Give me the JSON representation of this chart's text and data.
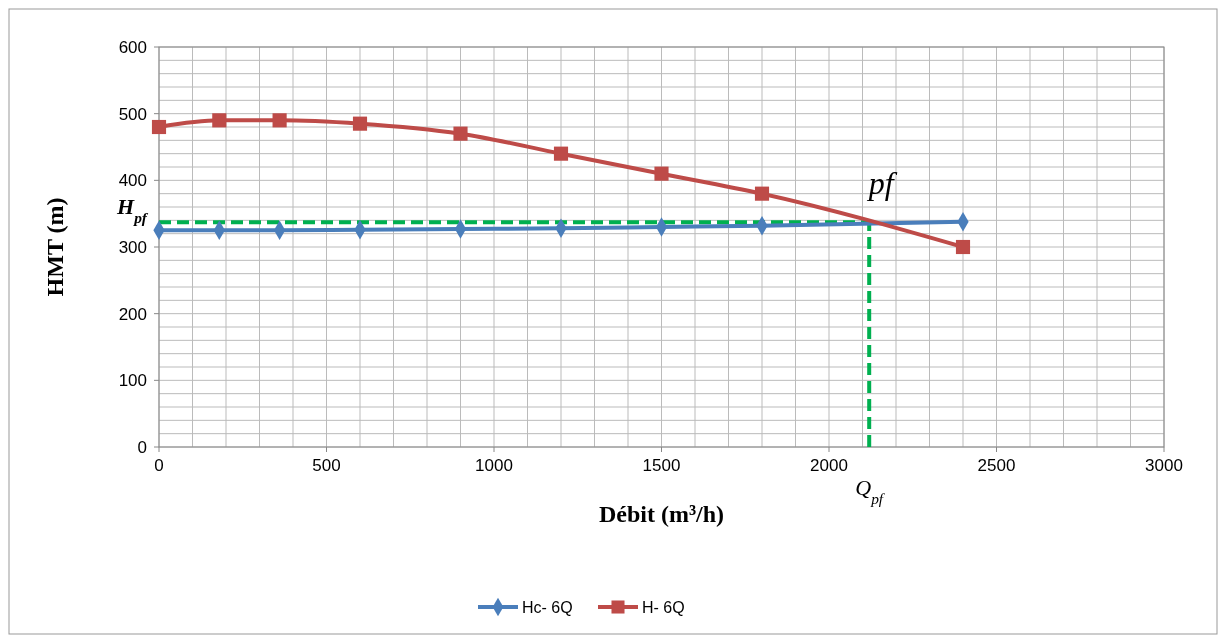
{
  "chart_data": {
    "type": "line",
    "xlabel": "Débit (m³/h)",
    "ylabel": "HMT (m)",
    "x": [
      0,
      180,
      360,
      600,
      900,
      1200,
      1500,
      1800,
      2400
    ],
    "series": [
      {
        "name": "Hc- 6Q",
        "color": "#4a7ebb",
        "marker": "diamond",
        "values": [
          325,
          325,
          325,
          326,
          327,
          328,
          330,
          332,
          338
        ]
      },
      {
        "name": "H- 6Q",
        "color": "#be4b48",
        "marker": "square",
        "values": [
          480,
          490,
          490,
          485,
          470,
          440,
          410,
          380,
          300
        ]
      }
    ],
    "xlim": [
      0,
      3000
    ],
    "xticks": [
      0,
      500,
      1000,
      1500,
      2000,
      2500,
      3000
    ],
    "ylim": [
      0,
      600
    ],
    "yticks": [
      0,
      100,
      200,
      300,
      400,
      500,
      600
    ],
    "grid": true,
    "legend": "bottom",
    "line_style": "solid",
    "ref_lines": [
      {
        "axis": "y",
        "value": 337,
        "label": "H$_{pf}$",
        "color": "#00b050",
        "line_style": "dashed"
      },
      {
        "axis": "x",
        "value": 2120,
        "label": "Q$_{pf}$",
        "color": "#00b050",
        "line_style": "dashed"
      }
    ],
    "annotations": [
      {
        "text": "pf",
        "x": 2120,
        "y": 337
      }
    ]
  }
}
